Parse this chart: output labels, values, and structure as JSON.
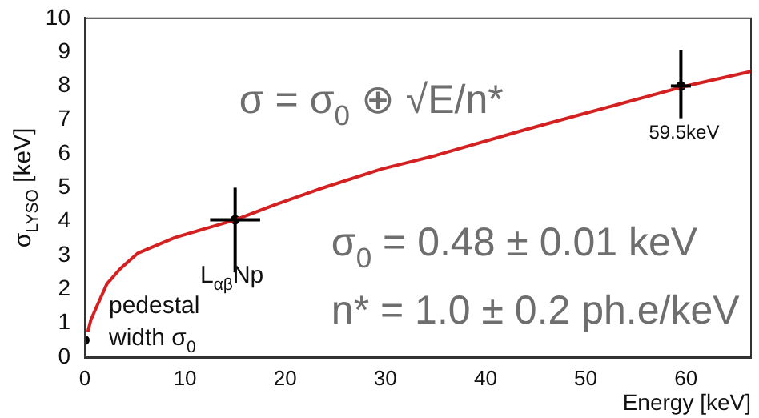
{
  "chart_data": {
    "type": "scatter",
    "xlabel": "Energy [keV]",
    "ylabel": "σ$_{LYSO}$ [keV]",
    "xlim": [
      0,
      66.5
    ],
    "xticks": [
      0,
      10,
      20,
      30,
      40,
      50,
      60
    ],
    "ylim": [
      0,
      10
    ],
    "yticks": [
      0,
      1,
      2,
      3,
      4,
      5,
      6,
      7,
      8,
      9,
      10
    ],
    "grid": false,
    "legend": false,
    "series": [
      {
        "type": "line",
        "color": "#d42020",
        "marker": "none",
        "x": [
          0.3,
          0.6,
          1.2,
          2.2,
          3.5,
          5.3,
          9,
          15,
          19,
          23.3,
          29.6,
          35,
          43.8,
          50,
          60,
          66.5
        ],
        "values": [
          0.75,
          1.1,
          1.5,
          2.16,
          2.6,
          3.07,
          3.53,
          4.05,
          4.5,
          4.95,
          5.55,
          5.95,
          6.7,
          7.2,
          8.0,
          8.43
        ]
      },
      {
        "color": "#000000",
        "marker": "circle",
        "x": [
          0,
          15,
          59.5
        ],
        "values": [
          0.5,
          4.05,
          8.0
        ],
        "errors": [
          null,
          [
            2.5,
            5.0
          ],
          [
            7.05,
            9.05
          ]
        ],
        "xerrors": [
          null,
          2.5,
          1
        ]
      }
    ],
    "annotations": [
      {
        "text": "σ = σ$_{0}$ ⊕ √E/n*"
      },
      {
        "text": "σ$_{0}$ = 0.48 ± 0.01 keV"
      },
      {
        "text": "n* = 1.0 ± 0.2 ph.e/keV"
      },
      {
        "text": "L$_{αβ}$Np",
        "x": 15,
        "y": 4.05
      },
      {
        "text": "59.5keV",
        "x": 59.5,
        "y": 8.0
      },
      {
        "text": "pedestal width σ$_{0}$",
        "x": 0,
        "y": 0.5
      }
    ]
  }
}
